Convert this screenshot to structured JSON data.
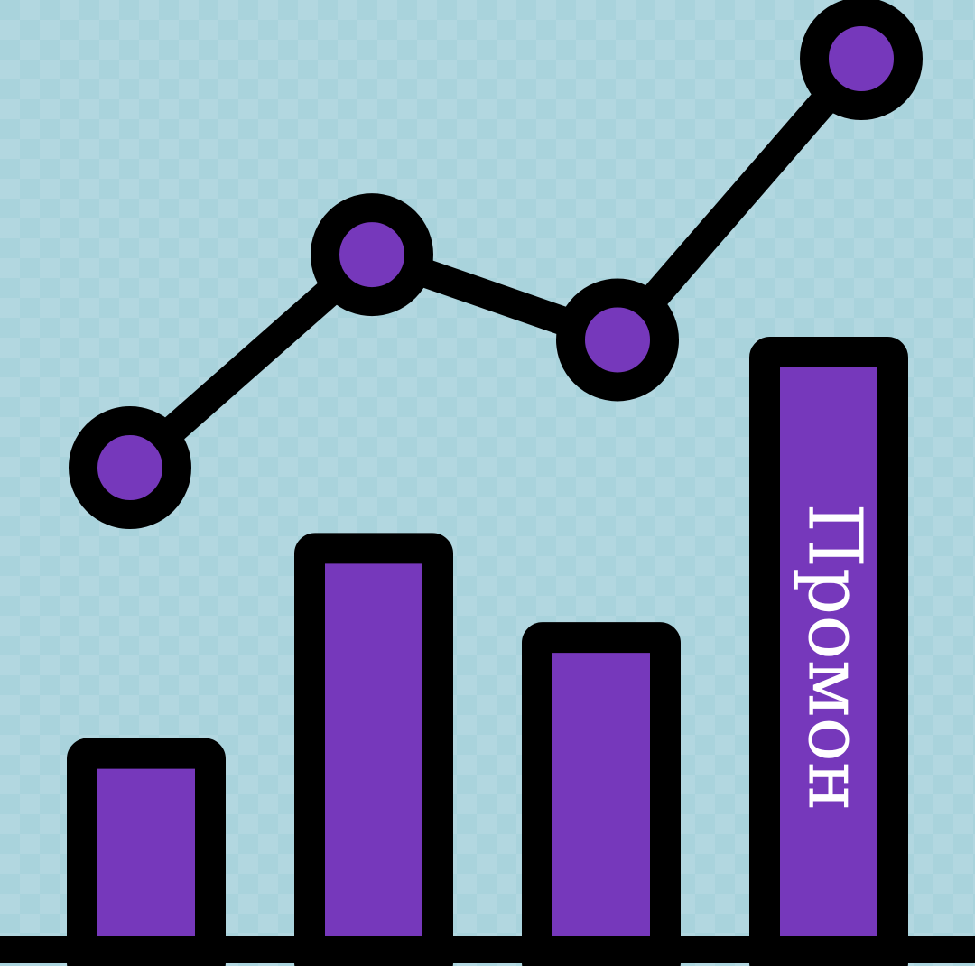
{
  "chart_data": {
    "type": "bar",
    "categories": [
      "",
      "",
      "",
      ""
    ],
    "values": [
      22,
      45,
      35,
      67
    ],
    "ylim": [
      0,
      70
    ],
    "line_overlay": {
      "type": "line",
      "values": [
        48,
        73,
        63,
        96
      ],
      "ylim": [
        0,
        100
      ]
    },
    "annotations": [
      {
        "text": "Промон",
        "bar_index": 3,
        "orientation": "rotated-90-clockwise"
      }
    ],
    "grid": false,
    "legend": "none"
  },
  "colors": {
    "background": "#a9d3dc",
    "fill": "#7638bb",
    "outline": "#000000",
    "label": "#ffffff"
  }
}
